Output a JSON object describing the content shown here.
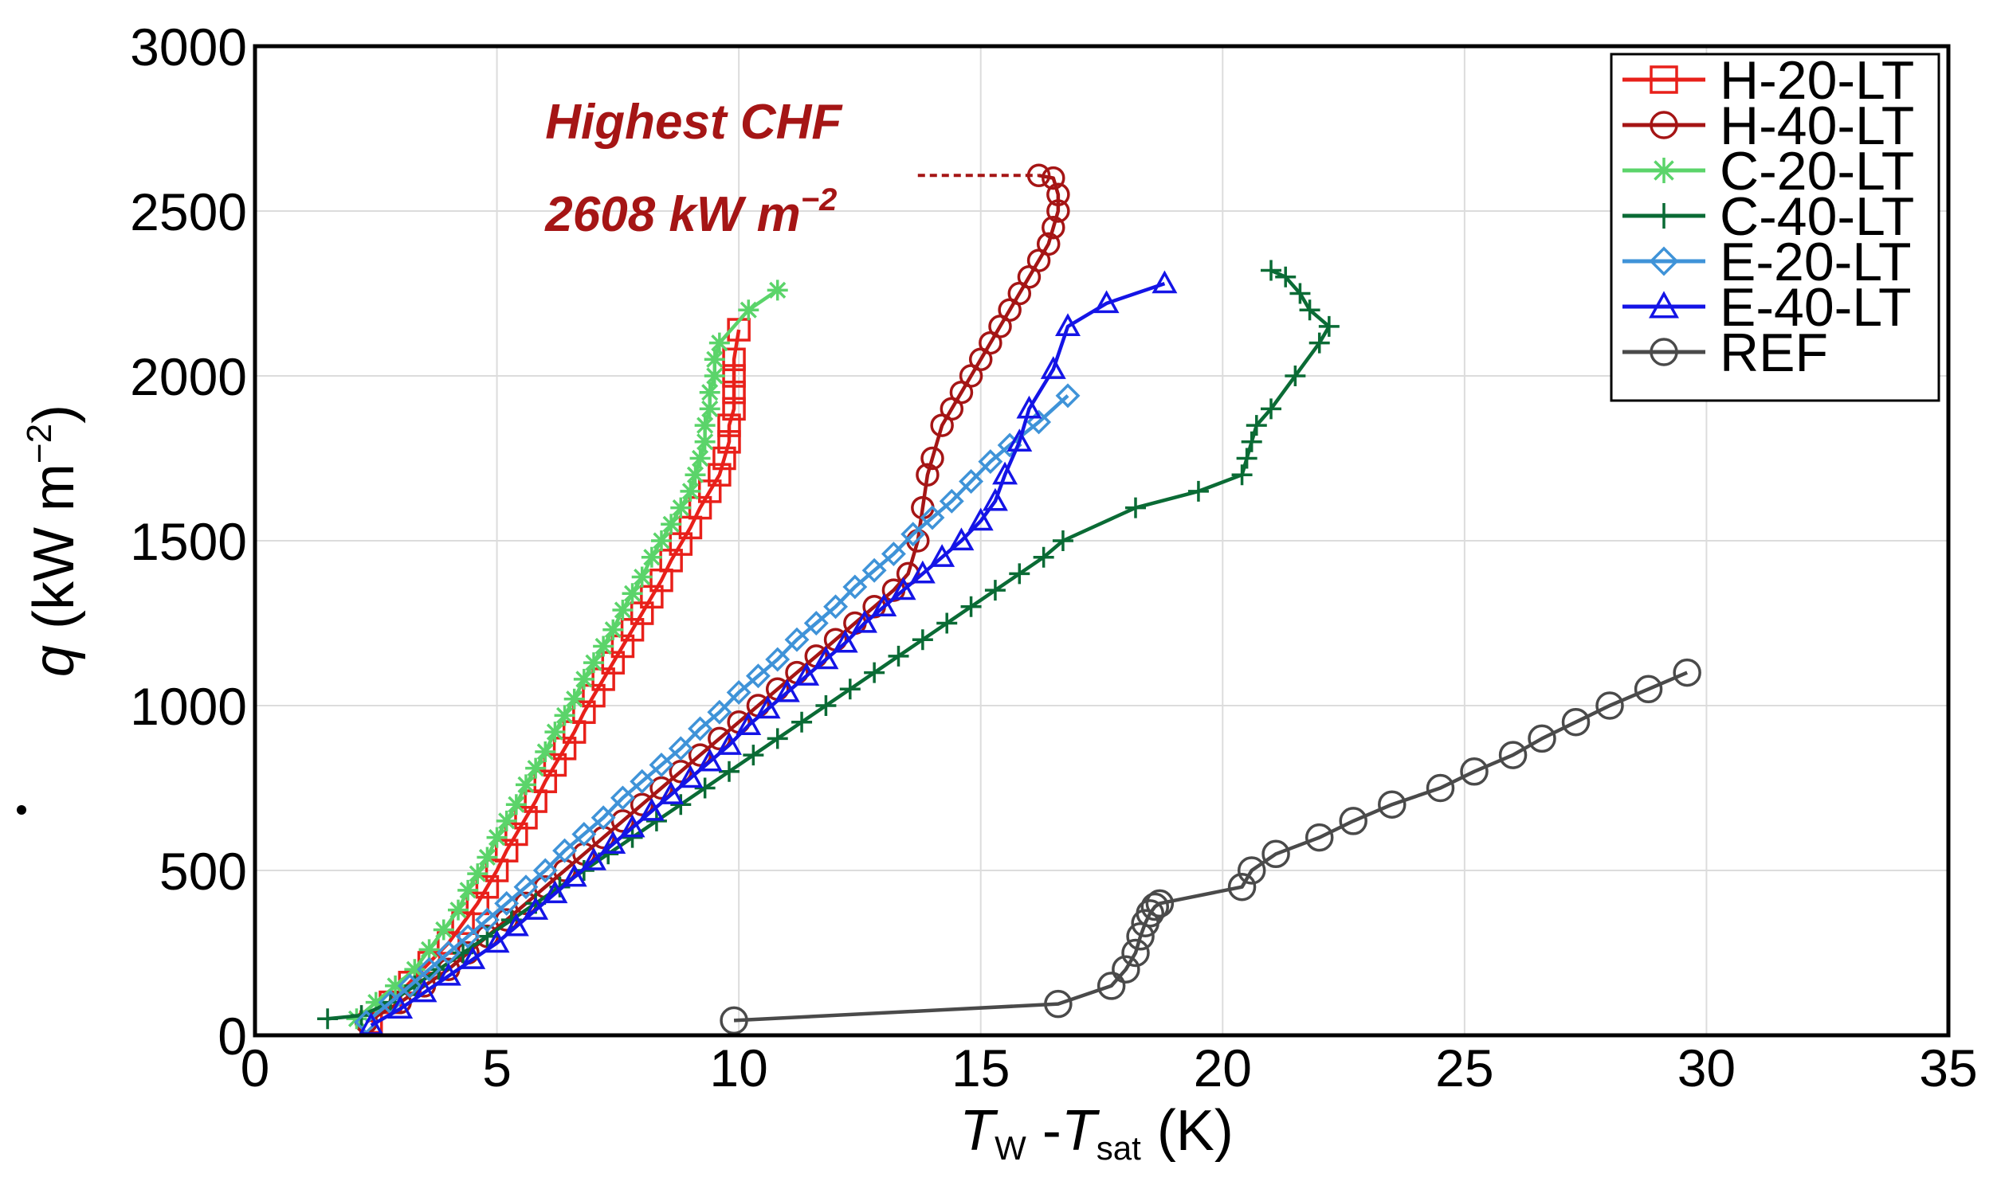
{
  "chart_data": {
    "type": "line",
    "title": "",
    "xlabel": {
      "T": "T",
      "w": "W",
      "sep": " -",
      "T2": "T",
      "sat": "sat",
      "unit": " (K)"
    },
    "ylabel": {
      "q": "q",
      "unit": " (kW m",
      "exp": "−2",
      "close": ")"
    },
    "xlim": [
      0,
      35
    ],
    "ylim": [
      0,
      3000
    ],
    "xticks": [
      0,
      5,
      10,
      15,
      20,
      25,
      30,
      35
    ],
    "yticks": [
      0,
      500,
      1000,
      1500,
      2000,
      2500,
      3000
    ],
    "grid": true,
    "legend_position": "top-right",
    "annotation": {
      "line1": "Highest CHF",
      "line2": "2608 kW m",
      "exp": "−2",
      "color": "#a51515",
      "x_start": 13.7,
      "x_end": 16.2,
      "y": 2608,
      "text_x": 6.0,
      "text_y1": 2720,
      "text_y2": 2440
    },
    "series": [
      {
        "name": "H-20-LT",
        "color": "#e8201a",
        "marker": "square",
        "x": [
          2.4,
          2.8,
          3.2,
          3.6,
          4.0,
          4.3,
          4.6,
          4.8,
          5.0,
          5.2,
          5.4,
          5.6,
          5.8,
          6.0,
          6.2,
          6.4,
          6.6,
          6.8,
          7.0,
          7.2,
          7.4,
          7.6,
          7.8,
          8.0,
          8.2,
          8.4,
          8.6,
          8.8,
          9.0,
          9.2,
          9.4,
          9.6,
          9.7,
          9.8,
          9.8,
          9.9,
          9.9,
          9.9,
          9.9,
          10.0
        ],
        "y": [
          40,
          100,
          160,
          220,
          280,
          340,
          400,
          450,
          500,
          560,
          610,
          660,
          710,
          770,
          820,
          870,
          920,
          980,
          1030,
          1080,
          1130,
          1180,
          1230,
          1280,
          1330,
          1380,
          1440,
          1490,
          1540,
          1600,
          1650,
          1700,
          1750,
          1800,
          1850,
          1900,
          1950,
          2000,
          2050,
          2140
        ]
      },
      {
        "name": "H-40-LT",
        "color": "#a51515",
        "marker": "circle",
        "x": [
          2.3,
          3.0,
          3.5,
          4.0,
          4.4,
          4.8,
          5.2,
          5.6,
          6.0,
          6.4,
          6.8,
          7.2,
          7.6,
          8.0,
          8.4,
          8.8,
          9.2,
          9.6,
          10.0,
          10.4,
          10.8,
          11.2,
          11.6,
          12.0,
          12.4,
          12.8,
          13.2,
          13.5,
          13.7,
          13.8,
          13.9,
          14.0,
          14.2,
          14.4,
          14.6,
          14.8,
          15.0,
          15.2,
          15.4,
          15.6,
          15.8,
          16.0,
          16.2,
          16.4,
          16.5,
          16.6,
          16.6,
          16.5,
          16.2
        ],
        "y": [
          40,
          100,
          150,
          200,
          250,
          300,
          350,
          400,
          450,
          500,
          550,
          600,
          650,
          700,
          750,
          800,
          850,
          900,
          950,
          1000,
          1050,
          1100,
          1150,
          1200,
          1250,
          1300,
          1350,
          1400,
          1500,
          1600,
          1700,
          1750,
          1850,
          1900,
          1950,
          2000,
          2050,
          2100,
          2150,
          2200,
          2250,
          2300,
          2350,
          2400,
          2450,
          2500,
          2550,
          2600,
          2608
        ]
      },
      {
        "name": "C-20-LT",
        "color": "#5bd46a",
        "marker": "asterisk",
        "x": [
          2.1,
          2.5,
          2.9,
          3.3,
          3.6,
          3.9,
          4.2,
          4.4,
          4.6,
          4.8,
          5.0,
          5.2,
          5.4,
          5.6,
          5.8,
          6.0,
          6.2,
          6.4,
          6.6,
          6.8,
          7.0,
          7.2,
          7.4,
          7.6,
          7.8,
          8.0,
          8.2,
          8.4,
          8.6,
          8.8,
          9.0,
          9.1,
          9.2,
          9.3,
          9.3,
          9.4,
          9.4,
          9.5,
          9.5,
          9.6,
          10.2,
          10.8
        ],
        "y": [
          50,
          100,
          150,
          200,
          260,
          320,
          380,
          440,
          490,
          540,
          600,
          650,
          700,
          760,
          810,
          860,
          920,
          970,
          1020,
          1080,
          1130,
          1180,
          1230,
          1290,
          1340,
          1390,
          1450,
          1500,
          1550,
          1600,
          1650,
          1700,
          1750,
          1800,
          1850,
          1900,
          1950,
          2000,
          2050,
          2100,
          2200,
          2260
        ]
      },
      {
        "name": "C-40-LT",
        "color": "#0a6b35",
        "marker": "plus",
        "x": [
          1.5,
          2.2,
          2.8,
          3.3,
          3.8,
          4.3,
          4.8,
          5.3,
          5.8,
          6.3,
          6.8,
          7.3,
          7.8,
          8.3,
          8.8,
          9.3,
          9.8,
          10.3,
          10.8,
          11.3,
          11.8,
          12.3,
          12.8,
          13.3,
          13.8,
          14.3,
          14.8,
          15.3,
          15.8,
          16.3,
          16.7,
          18.2,
          19.5,
          20.4,
          20.5,
          20.6,
          20.7,
          21.0,
          21.5,
          22.0,
          22.2,
          21.8,
          21.6,
          21.3,
          21.0
        ],
        "y": [
          50,
          60,
          100,
          150,
          200,
          250,
          300,
          350,
          400,
          450,
          500,
          550,
          600,
          650,
          700,
          750,
          800,
          850,
          900,
          950,
          1000,
          1050,
          1100,
          1150,
          1200,
          1250,
          1300,
          1350,
          1400,
          1450,
          1500,
          1600,
          1650,
          1700,
          1750,
          1800,
          1850,
          1900,
          2000,
          2100,
          2150,
          2200,
          2250,
          2300,
          2320
        ]
      },
      {
        "name": "E-20-LT",
        "color": "#3f93d8",
        "marker": "diamond",
        "x": [
          2.3,
          2.8,
          3.2,
          3.6,
          4.0,
          4.4,
          4.8,
          5.2,
          5.6,
          6.0,
          6.4,
          6.8,
          7.2,
          7.6,
          8.0,
          8.4,
          8.8,
          9.2,
          9.6,
          10.0,
          10.4,
          10.8,
          11.2,
          11.6,
          12.0,
          12.4,
          12.8,
          13.2,
          13.6,
          14.0,
          14.4,
          14.8,
          15.2,
          15.6,
          16.2,
          16.8
        ],
        "y": [
          40,
          100,
          150,
          200,
          250,
          300,
          350,
          400,
          450,
          500,
          560,
          610,
          660,
          720,
          770,
          820,
          870,
          930,
          980,
          1040,
          1090,
          1140,
          1200,
          1250,
          1300,
          1360,
          1410,
          1460,
          1520,
          1570,
          1620,
          1680,
          1740,
          1790,
          1860,
          1940
        ]
      },
      {
        "name": "E-40-LT",
        "color": "#1414e6",
        "marker": "triangle",
        "x": [
          2.4,
          3.0,
          3.5,
          4.0,
          4.5,
          5.0,
          5.4,
          5.8,
          6.2,
          6.6,
          7.0,
          7.4,
          7.8,
          8.2,
          8.6,
          9.0,
          9.4,
          9.8,
          10.2,
          10.6,
          11.0,
          11.4,
          11.8,
          12.2,
          12.6,
          13.0,
          13.4,
          13.8,
          14.2,
          14.6,
          15.0,
          15.3,
          15.5,
          15.8,
          16.0,
          16.5,
          16.8,
          17.6,
          18.8
        ],
        "y": [
          30,
          80,
          130,
          180,
          230,
          280,
          330,
          380,
          430,
          480,
          530,
          580,
          630,
          680,
          730,
          780,
          830,
          880,
          940,
          990,
          1040,
          1090,
          1140,
          1190,
          1250,
          1300,
          1350,
          1400,
          1450,
          1500,
          1560,
          1620,
          1700,
          1800,
          1900,
          2020,
          2150,
          2220,
          2280
        ]
      },
      {
        "name": "REF",
        "color": "#4a4a4a",
        "marker": "circle",
        "x": [
          9.9,
          16.6,
          17.7,
          18.0,
          18.2,
          18.3,
          18.4,
          18.5,
          18.6,
          18.7,
          20.4,
          20.6,
          21.1,
          22.0,
          22.7,
          23.5,
          24.5,
          25.2,
          26.0,
          26.6,
          27.3,
          28.0,
          28.8,
          29.6
        ],
        "y": [
          45,
          95,
          150,
          200,
          250,
          300,
          340,
          370,
          390,
          400,
          450,
          500,
          550,
          600,
          650,
          700,
          750,
          800,
          850,
          900,
          950,
          1000,
          1050,
          1100
        ]
      }
    ]
  }
}
